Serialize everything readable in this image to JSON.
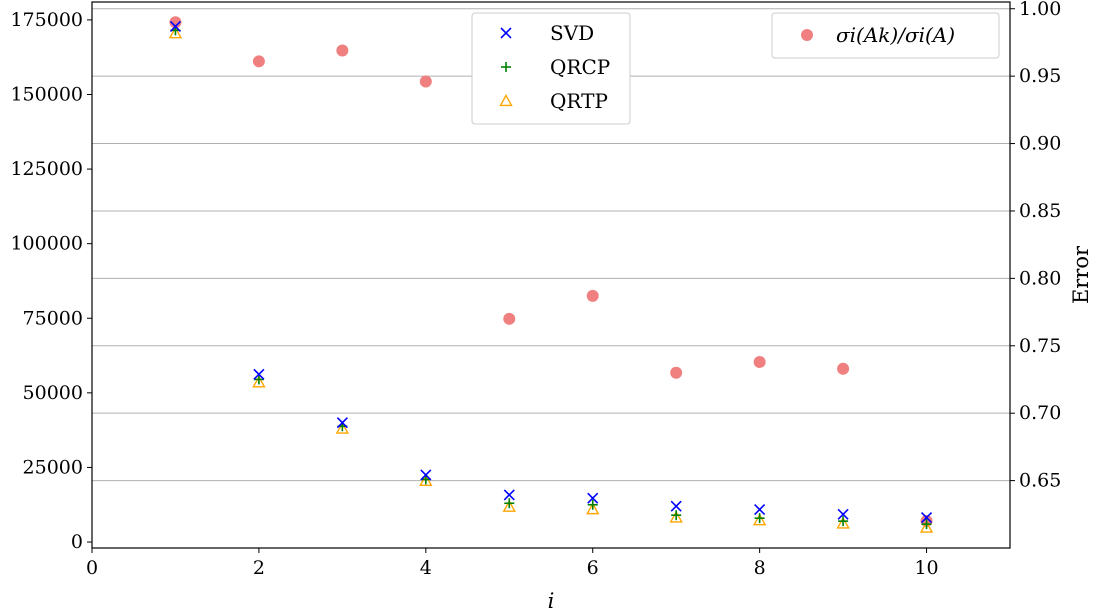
{
  "chart_data": {
    "type": "scatter",
    "xlabel": "i",
    "ylabel_left": "",
    "ylabel_right": "Error",
    "xlim": [
      0,
      11
    ],
    "ylim_left": [
      -2000,
      181000
    ],
    "ylim_right": [
      0.6,
      1.005
    ],
    "xticks": [
      0,
      2,
      4,
      6,
      8,
      10
    ],
    "yticks_left": [
      0,
      25000,
      50000,
      75000,
      100000,
      125000,
      150000,
      175000
    ],
    "yticks_right": [
      0.65,
      0.7,
      0.75,
      0.8,
      0.85,
      0.9,
      0.95,
      1.0
    ],
    "grid": "horizontal lines at right-axis ticks",
    "x": [
      1,
      2,
      3,
      4,
      5,
      6,
      7,
      8,
      9,
      10
    ],
    "series_left": [
      {
        "name": "SVD",
        "marker": "x",
        "color": "#0000ff",
        "values": [
          172800,
          56200,
          40000,
          22500,
          15800,
          14700,
          12000,
          10900,
          9300,
          8200
        ]
      },
      {
        "name": "QRCP",
        "marker": "plus",
        "color": "#008000",
        "values": [
          171500,
          54500,
          38800,
          21000,
          13000,
          12500,
          9000,
          8000,
          7000,
          6000
        ]
      },
      {
        "name": "QRTP",
        "marker": "triangle",
        "color": "#ffa500",
        "values": [
          170500,
          53500,
          38000,
          20500,
          11800,
          11000,
          8200,
          7300,
          6200,
          4800
        ]
      }
    ],
    "series_right": [
      {
        "name": "σi(Ak)/σi(A)",
        "marker": "circle",
        "color": "#f08080",
        "values": [
          0.99,
          0.961,
          0.969,
          0.946,
          0.77,
          0.787,
          0.73,
          0.738,
          0.733,
          0.62
        ]
      }
    ],
    "legends": [
      {
        "placement": "top-center",
        "entries": [
          "SVD",
          "QRCP",
          "QRTP"
        ]
      },
      {
        "placement": "top-right",
        "entries": [
          "σi(Ak)/σi(A)"
        ]
      }
    ]
  }
}
